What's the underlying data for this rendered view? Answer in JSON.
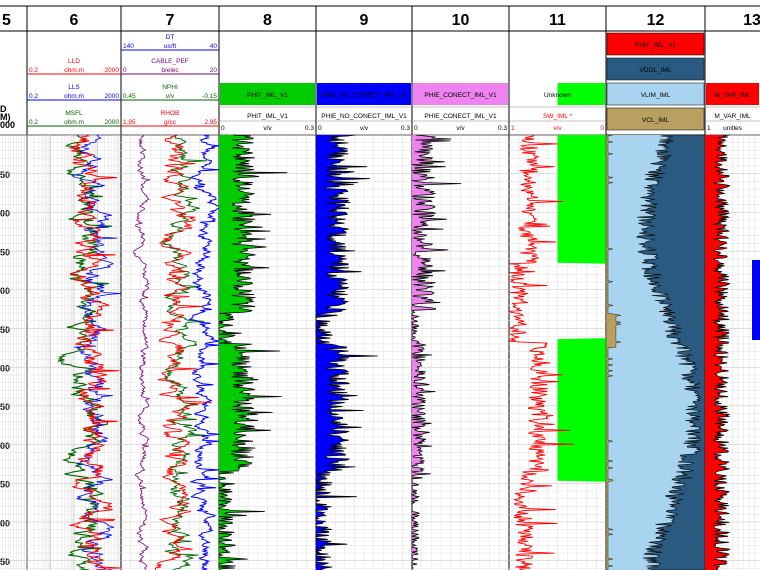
{
  "depth_axis": {
    "header_lines": [
      "D",
      "M)",
      "000"
    ],
    "ticks": [
      "50",
      "00",
      "50",
      "00",
      "50",
      "00",
      "50",
      "00",
      "50",
      "00",
      "50"
    ]
  },
  "track_numbers": [
    "5",
    "6",
    "7",
    "8",
    "9",
    "10",
    "11",
    "12",
    "13"
  ],
  "colors": {
    "red": "#ff0000",
    "blue": "#0000ff",
    "green": "#00cc00",
    "darkgreen": "#006600",
    "purple": "#800080",
    "pink": "#ee82ee",
    "lime": "#00ff00",
    "navy": "#2a5a80",
    "lightblue": "#a8d4f0",
    "tan": "#b8a060"
  },
  "tracks": {
    "t6": [
      {
        "name": "LLD",
        "min": "0.2",
        "unit": "ohm.m",
        "max": "2000",
        "color": "#ff0000"
      },
      {
        "name": "LLS",
        "min": "0.2",
        "unit": "ohm.m",
        "max": "2000",
        "color": "#0000ff"
      },
      {
        "name": "MSFL",
        "min": "0.2",
        "unit": "ohm.m",
        "max": "2000",
        "color": "#006600"
      }
    ],
    "t7": [
      {
        "name": "DT",
        "min": "140",
        "unit": "us/ft",
        "max": "40",
        "color": "#0000ff"
      },
      {
        "name": "CABLE_PEF",
        "min": "0",
        "unit": "b/elec",
        "max": "20",
        "color": "#800080"
      },
      {
        "name": "NPHI",
        "min": "0.45",
        "unit": "v/v",
        "max": "-0.15",
        "color": "#006600"
      },
      {
        "name": "RHOB",
        "min": "1.95",
        "unit": "g/cc",
        "max": "2.95",
        "color": "#ff0000"
      }
    ],
    "t8": {
      "fill_label": "PHIT_IML_V1",
      "curve": "PHIT_IML_V1",
      "min": "0",
      "unit": "v/v",
      "max": "0.3"
    },
    "t9": {
      "fill_label": "PHIE_NO_CONECT_IML_V1",
      "curve": "PHIE_NO_CONECT_IML_V1",
      "min": "0",
      "unit": "v/v",
      "max": "0.3"
    },
    "t10": {
      "fill_label": "PHIE_CONECT_IML_V1",
      "curve": "PHIE_CONECT_IML_V1",
      "min": "0",
      "unit": "v/v",
      "max": "0.3"
    },
    "t11": {
      "fill_label": "Unknown",
      "curve": "SW_IML *",
      "min": "1",
      "unit": "v/v",
      "max": "0"
    },
    "t12": {
      "labels": [
        "PHIT_IML_V1",
        "VDOL_IML",
        "VLIM_IML",
        "VCL_IML"
      ]
    },
    "t13": {
      "fill_label": "M_VAR_IML",
      "curve": "M_VAR_IML",
      "min": "1",
      "unit": "unitles"
    }
  }
}
